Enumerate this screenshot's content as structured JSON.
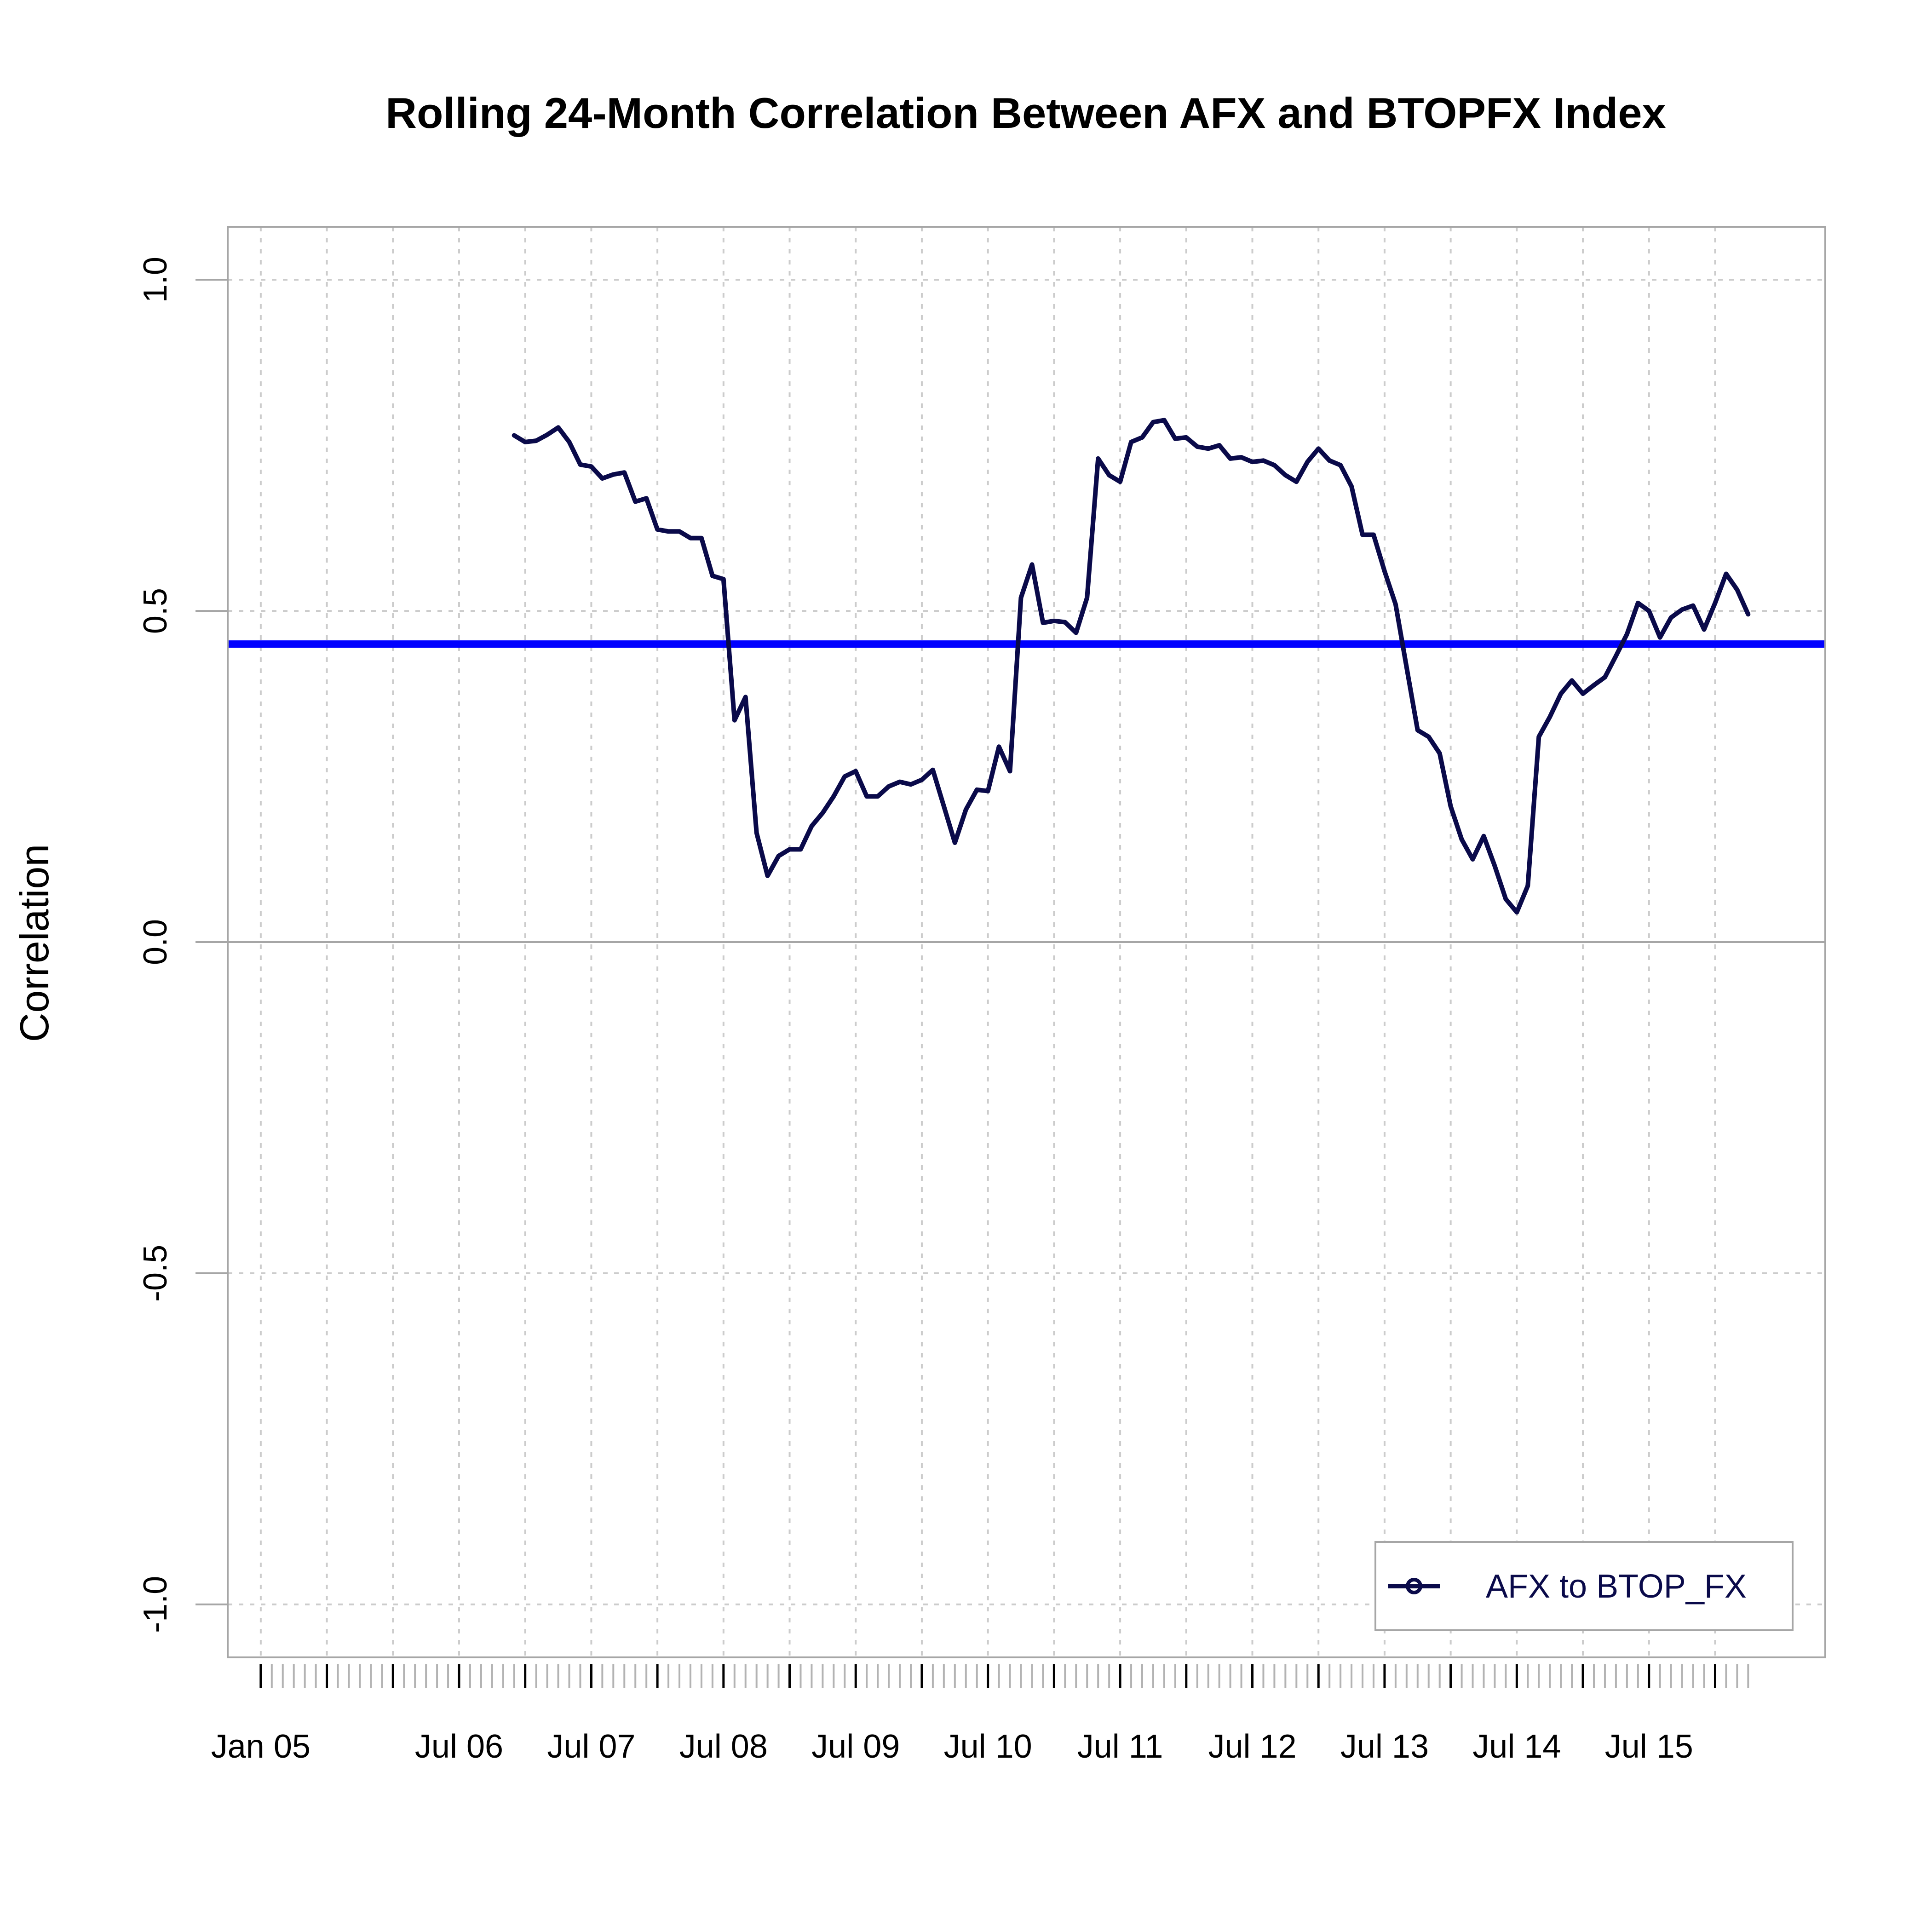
{
  "chart_data": {
    "type": "line",
    "title": "Rolling 24-Month Correlation Between AFX and BTOPFX Index",
    "xlabel": "",
    "ylabel": "Correlation",
    "ylim": [
      -1.0,
      1.0
    ],
    "xlim": [
      "2004-10",
      "2016-11"
    ],
    "grid": true,
    "legend_position": "bottom-right",
    "y_ticks": [
      {
        "value": -1.0,
        "label": "-1.0"
      },
      {
        "value": -0.5,
        "label": "-0.5"
      },
      {
        "value": 0.0,
        "label": "0.0"
      },
      {
        "value": 0.5,
        "label": "0.5"
      },
      {
        "value": 1.0,
        "label": "1.0"
      }
    ],
    "x_ticks": [
      {
        "date": "2005-01",
        "label": "Jan 05"
      },
      {
        "date": "2006-07",
        "label": "Jul 06"
      },
      {
        "date": "2007-07",
        "label": "Jul 07"
      },
      {
        "date": "2008-07",
        "label": "Jul 08"
      },
      {
        "date": "2009-07",
        "label": "Jul 09"
      },
      {
        "date": "2010-07",
        "label": "Jul 10"
      },
      {
        "date": "2011-07",
        "label": "Jul 11"
      },
      {
        "date": "2012-07",
        "label": "Jul 12"
      },
      {
        "date": "2013-07",
        "label": "Jul 13"
      },
      {
        "date": "2014-07",
        "label": "Jul 14"
      },
      {
        "date": "2015-07",
        "label": "Jul 15"
      }
    ],
    "x_grid_dates": [
      "2005-01",
      "2005-07",
      "2006-01",
      "2006-07",
      "2007-01",
      "2007-07",
      "2008-01",
      "2008-07",
      "2009-01",
      "2009-07",
      "2010-01",
      "2010-07",
      "2011-01",
      "2011-07",
      "2012-01",
      "2012-07",
      "2013-01",
      "2013-07",
      "2014-01",
      "2014-07",
      "2015-01",
      "2015-07",
      "2016-01"
    ],
    "x_minor_start": "2005-01",
    "x_minor_end": "2016-04",
    "reference_line": {
      "value": 0.45,
      "color": "#0000ff"
    },
    "series": [
      {
        "name": "AFX to BTOP_FX",
        "color": "#0a0a4a",
        "x": [
          "2006-12",
          "2007-01",
          "2007-02",
          "2007-03",
          "2007-04",
          "2007-05",
          "2007-06",
          "2007-07",
          "2007-08",
          "2007-09",
          "2007-10",
          "2007-11",
          "2007-12",
          "2008-01",
          "2008-02",
          "2008-03",
          "2008-04",
          "2008-05",
          "2008-06",
          "2008-07",
          "2008-08",
          "2008-09",
          "2008-10",
          "2008-11",
          "2008-12",
          "2009-01",
          "2009-02",
          "2009-03",
          "2009-04",
          "2009-05",
          "2009-06",
          "2009-07",
          "2009-08",
          "2009-09",
          "2009-10",
          "2009-11",
          "2009-12",
          "2010-01",
          "2010-02",
          "2010-03",
          "2010-04",
          "2010-05",
          "2010-06",
          "2010-07",
          "2010-08",
          "2010-09",
          "2010-10",
          "2010-11",
          "2010-12",
          "2011-01",
          "2011-02",
          "2011-03",
          "2011-04",
          "2011-05",
          "2011-06",
          "2011-07",
          "2011-08",
          "2011-09",
          "2011-10",
          "2011-11",
          "2011-12",
          "2012-01",
          "2012-02",
          "2012-03",
          "2012-04",
          "2012-05",
          "2012-06",
          "2012-07",
          "2012-08",
          "2012-09",
          "2012-10",
          "2012-11",
          "2012-12",
          "2013-01",
          "2013-02",
          "2013-03",
          "2013-04",
          "2013-05",
          "2013-06",
          "2013-07",
          "2013-08",
          "2013-09",
          "2013-10",
          "2013-11",
          "2013-12",
          "2014-01",
          "2014-02",
          "2014-03",
          "2014-04",
          "2014-05",
          "2014-06",
          "2014-07",
          "2014-08",
          "2014-09",
          "2014-10",
          "2014-11",
          "2014-12",
          "2015-01",
          "2015-02",
          "2015-03",
          "2015-04",
          "2015-05",
          "2015-06",
          "2015-07",
          "2015-08",
          "2015-09",
          "2015-10",
          "2015-11",
          "2015-12",
          "2016-01",
          "2016-02",
          "2016-03",
          "2016-04"
        ],
        "values": [
          0.765,
          0.755,
          0.757,
          0.766,
          0.777,
          0.755,
          0.721,
          0.718,
          0.7,
          0.706,
          0.709,
          0.665,
          0.67,
          0.623,
          0.62,
          0.62,
          0.61,
          0.61,
          0.553,
          0.548,
          0.335,
          0.37,
          0.165,
          0.1,
          0.13,
          0.14,
          0.14,
          0.175,
          0.195,
          0.22,
          0.25,
          0.258,
          0.22,
          0.22,
          0.235,
          0.242,
          0.238,
          0.245,
          0.26,
          0.205,
          0.15,
          0.2,
          0.23,
          0.228,
          0.295,
          0.258,
          0.52,
          0.57,
          0.482,
          0.485,
          0.483,
          0.467,
          0.52,
          0.73,
          0.705,
          0.695,
          0.755,
          0.762,
          0.785,
          0.788,
          0.76,
          0.762,
          0.748,
          0.745,
          0.75,
          0.73,
          0.732,
          0.725,
          0.727,
          0.72,
          0.705,
          0.695,
          0.725,
          0.745,
          0.727,
          0.72,
          0.688,
          0.615,
          0.615,
          0.56,
          0.51,
          0.415,
          0.32,
          0.31,
          0.285,
          0.205,
          0.155,
          0.125,
          0.16,
          0.115,
          0.065,
          0.045,
          0.085,
          0.31,
          0.34,
          0.375,
          0.395,
          0.375,
          0.388,
          0.4,
          0.432,
          0.465,
          0.512,
          0.5,
          0.46,
          0.49,
          0.502,
          0.508,
          0.472,
          0.512,
          0.556,
          0.532,
          0.495
        ]
      }
    ]
  }
}
